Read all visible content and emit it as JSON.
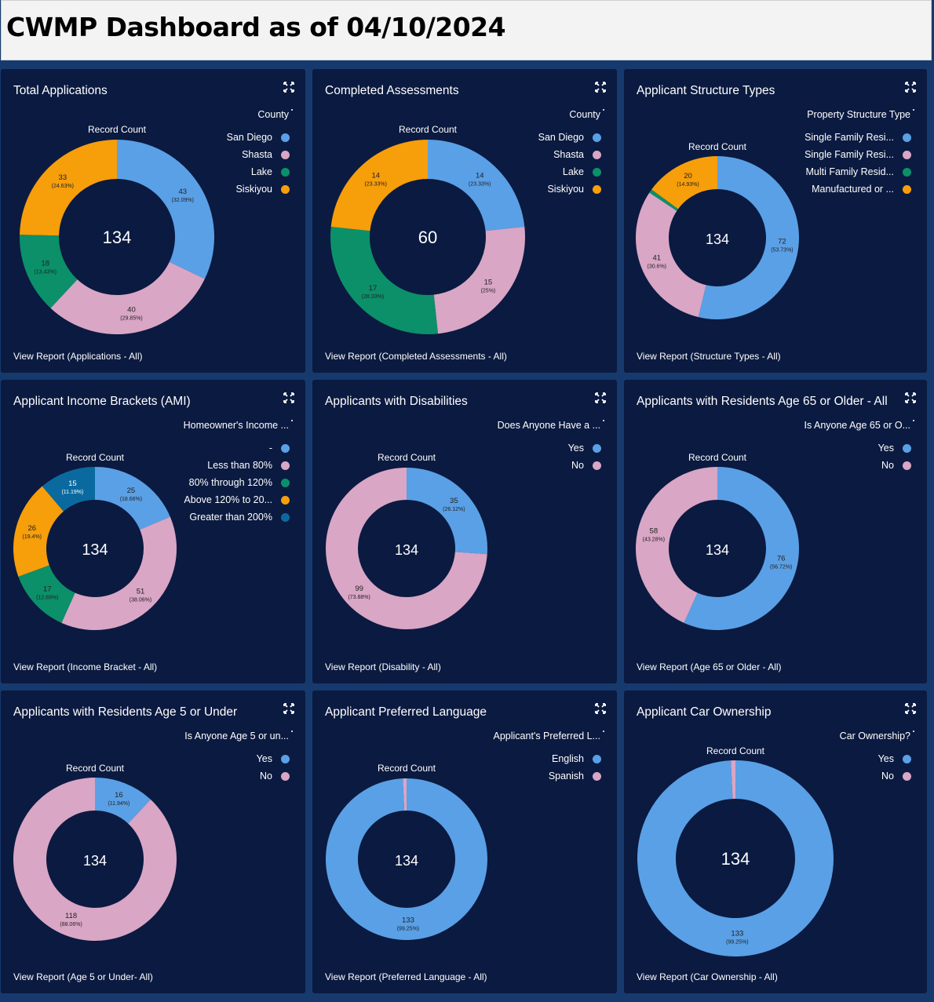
{
  "header": {
    "title": "CWMP Dashboard as of 04/10/2024"
  },
  "colors": {
    "blue": "#5aa0e6",
    "pink": "#d9a6c5",
    "green": "#0b906a",
    "orange": "#f79e0b",
    "navy_blue": "#0a6aa0",
    "card_bg": "#0b1a40",
    "page_bg": "#163a6d"
  },
  "cards": [
    {
      "title": "Total Applications",
      "legend_title": "County",
      "record_label": "Record Count",
      "total": "134",
      "report_link": "View Report (Applications - All)",
      "legend": [
        {
          "label": "San Diego",
          "color": "#5aa0e6"
        },
        {
          "label": "Shasta",
          "color": "#d9a6c5"
        },
        {
          "label": "Lake",
          "color": "#0b906a"
        },
        {
          "label": "Siskiyou",
          "color": "#f79e0b"
        }
      ]
    },
    {
      "title": "Completed Assessments",
      "legend_title": "County",
      "record_label": "Record Count",
      "total": "60",
      "report_link": "View Report (Completed Assessments - All)",
      "legend": [
        {
          "label": "San Diego",
          "color": "#5aa0e6"
        },
        {
          "label": "Shasta",
          "color": "#d9a6c5"
        },
        {
          "label": "Lake",
          "color": "#0b906a"
        },
        {
          "label": "Siskiyou",
          "color": "#f79e0b"
        }
      ]
    },
    {
      "title": "Applicant Structure Types",
      "legend_title": "Property Structure Type",
      "record_label": "Record Count",
      "total": "134",
      "report_link": "View Report (Structure Types - All)",
      "legend": [
        {
          "label": "Single Family Resi...",
          "color": "#5aa0e6"
        },
        {
          "label": "Single Family Resi...",
          "color": "#d9a6c5"
        },
        {
          "label": "Multi Family Resid...",
          "color": "#0b906a"
        },
        {
          "label": "Manufactured or ...",
          "color": "#f79e0b"
        }
      ]
    },
    {
      "title": "Applicant Income Brackets (AMI)",
      "legend_title": "Homeowner's Income ...",
      "record_label": "Record Count",
      "total": "134",
      "report_link": "View Report (Income Bracket - All)",
      "legend": [
        {
          "label": "-",
          "color": "#5aa0e6"
        },
        {
          "label": "Less than 80%",
          "color": "#d9a6c5"
        },
        {
          "label": "80% through 120%",
          "color": "#0b906a"
        },
        {
          "label": "Above 120% to 20...",
          "color": "#f79e0b"
        },
        {
          "label": "Greater than 200%",
          "color": "#0a6aa0"
        }
      ]
    },
    {
      "title": "Applicants with Disabilities",
      "legend_title": "Does Anyone Have a ...",
      "record_label": "Record Count",
      "total": "134",
      "report_link": "View Report (Disability - All)",
      "legend": [
        {
          "label": "Yes",
          "color": "#5aa0e6"
        },
        {
          "label": "No",
          "color": "#d9a6c5"
        }
      ]
    },
    {
      "title": "Applicants with Residents Age 65 or Older - All",
      "legend_title": "Is Anyone Age 65 or O...",
      "record_label": "Record Count",
      "total": "134",
      "report_link": "View Report (Age 65 or Older - All)",
      "legend": [
        {
          "label": "Yes",
          "color": "#5aa0e6"
        },
        {
          "label": "No",
          "color": "#d9a6c5"
        }
      ]
    },
    {
      "title": "Applicants with Residents Age 5 or Under",
      "legend_title": "Is Anyone Age 5 or un...",
      "record_label": "Record Count",
      "total": "134",
      "report_link": "View Report (Age 5 or Under- All)",
      "legend": [
        {
          "label": "Yes",
          "color": "#5aa0e6"
        },
        {
          "label": "No",
          "color": "#d9a6c5"
        }
      ]
    },
    {
      "title": "Applicant Preferred Language",
      "legend_title": "Applicant's Preferred L...",
      "record_label": "Record Count",
      "total": "134",
      "report_link": "View Report (Preferred Language - All)",
      "legend": [
        {
          "label": "English",
          "color": "#5aa0e6"
        },
        {
          "label": "Spanish",
          "color": "#d9a6c5"
        }
      ]
    },
    {
      "title": "Applicant Car Ownership",
      "legend_title": "Car Ownership?",
      "record_label": "Record Count",
      "total": "134",
      "report_link": "View Report (Car Ownership - All)",
      "legend": [
        {
          "label": "Yes",
          "color": "#5aa0e6"
        },
        {
          "label": "No",
          "color": "#d9a6c5"
        }
      ]
    }
  ],
  "chart_data": [
    {
      "type": "pie",
      "title": "Total Applications",
      "categories": [
        "San Diego",
        "Shasta",
        "Lake",
        "Siskiyou"
      ],
      "values": [
        43,
        40,
        18,
        33
      ],
      "labels": [
        "(32.09%)",
        "(29.85%)",
        "(13.43%)",
        "(24.63%)"
      ],
      "colors": [
        "#5aa0e6",
        "#d9a6c5",
        "#0b906a",
        "#f79e0b"
      ]
    },
    {
      "type": "pie",
      "title": "Completed Assessments",
      "categories": [
        "San Diego",
        "Shasta",
        "Lake",
        "Siskiyou"
      ],
      "values": [
        14,
        15,
        17,
        14
      ],
      "labels": [
        "(23.33%)",
        "(25%)",
        "(28.33%)",
        "(23.33%)"
      ],
      "colors": [
        "#5aa0e6",
        "#d9a6c5",
        "#0b906a",
        "#f79e0b"
      ]
    },
    {
      "type": "pie",
      "title": "Applicant Structure Types",
      "categories": [
        "Single Family Resi...",
        "Single Family Resi...",
        "Multi Family Resid...",
        "Manufactured or ..."
      ],
      "values": [
        72,
        41,
        1,
        20
      ],
      "labels": [
        "(53.73%)",
        "(30.6%)",
        "",
        "(14.93%)"
      ],
      "show": [
        true,
        true,
        false,
        true
      ],
      "colors": [
        "#5aa0e6",
        "#d9a6c5",
        "#0b906a",
        "#f79e0b"
      ]
    },
    {
      "type": "pie",
      "title": "Applicant Income Brackets (AMI)",
      "categories": [
        "-",
        "Less than 80%",
        "80% through 120%",
        "Above 120% to 20...",
        "Greater than 200%"
      ],
      "values": [
        25,
        51,
        17,
        26,
        15
      ],
      "labels": [
        "(18.66%)",
        "(38.06%)",
        "(12.69%)",
        "(19.4%)",
        "(11.19%)"
      ],
      "colors": [
        "#5aa0e6",
        "#d9a6c5",
        "#0b906a",
        "#f79e0b",
        "#0a6aa0"
      ]
    },
    {
      "type": "pie",
      "title": "Applicants with Disabilities",
      "categories": [
        "Yes",
        "No"
      ],
      "values": [
        35,
        99
      ],
      "labels": [
        "(26.12%)",
        "(73.88%)"
      ],
      "colors": [
        "#5aa0e6",
        "#d9a6c5"
      ]
    },
    {
      "type": "pie",
      "title": "Applicants with Residents Age 65 or Older - All",
      "categories": [
        "Yes",
        "No"
      ],
      "values": [
        76,
        58
      ],
      "labels": [
        "(56.72%)",
        "(43.28%)"
      ],
      "colors": [
        "#5aa0e6",
        "#d9a6c5"
      ]
    },
    {
      "type": "pie",
      "title": "Applicants with Residents Age 5 or Under",
      "categories": [
        "Yes",
        "No"
      ],
      "values": [
        16,
        118
      ],
      "labels": [
        "(11.94%)",
        "(88.06%)"
      ],
      "colors": [
        "#5aa0e6",
        "#d9a6c5"
      ]
    },
    {
      "type": "pie",
      "title": "Applicant Preferred Language",
      "categories": [
        "English",
        "Spanish"
      ],
      "values": [
        133,
        1
      ],
      "labels": [
        "(99.25%)",
        ""
      ],
      "show": [
        true,
        false
      ],
      "colors": [
        "#5aa0e6",
        "#d9a6c5"
      ]
    },
    {
      "type": "pie",
      "title": "Applicant Car Ownership",
      "categories": [
        "Yes",
        "No"
      ],
      "values": [
        133,
        1
      ],
      "labels": [
        "(99.25%)",
        ""
      ],
      "show": [
        true,
        false
      ],
      "colors": [
        "#5aa0e6",
        "#d9a6c5"
      ]
    }
  ]
}
